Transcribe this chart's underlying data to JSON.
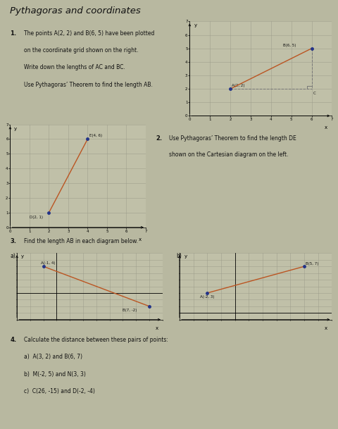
{
  "title": "Pythagoras and coordinates",
  "bg_color": "#b8b8a0",
  "grid_color": "#999988",
  "grid_face": "#c0c0a8",
  "text_color": "#111111",
  "q1_lines": [
    "The points A(2, 2) and B(6, 5) have been plotted",
    "on the coordinate grid shown on the right.",
    "Write down the lengths of AC and BC.",
    "Use Pythagoras’ Theorem to find the length AB."
  ],
  "q2_lines": [
    "Use Pythagoras’ Theorem to find the length DE",
    "shown on the Cartesian diagram on the left."
  ],
  "q3_line": "Find the length AB in each diagram below.",
  "q4_lines": [
    "Calculate the distance between these pairs of points:",
    "a)  A(3, 2) and B(6, 7)",
    "b)  M(-2, 5) and N(3, 3)",
    "c)  C(26, -15) and D(-2, -4)"
  ],
  "plot1_A": [
    2,
    2
  ],
  "plot1_B": [
    6,
    5
  ],
  "plot1_C": [
    6,
    2
  ],
  "plot2_D": [
    2,
    1
  ],
  "plot2_E": [
    4,
    6
  ],
  "plot3a_A": [
    -1,
    4
  ],
  "plot3a_B": [
    7,
    -2
  ],
  "plot3b_A": [
    -2,
    3
  ],
  "plot3b_B": [
    5,
    7
  ],
  "dot_color": "#223388",
  "line_color": "#bb5522",
  "dash_color": "#777777"
}
